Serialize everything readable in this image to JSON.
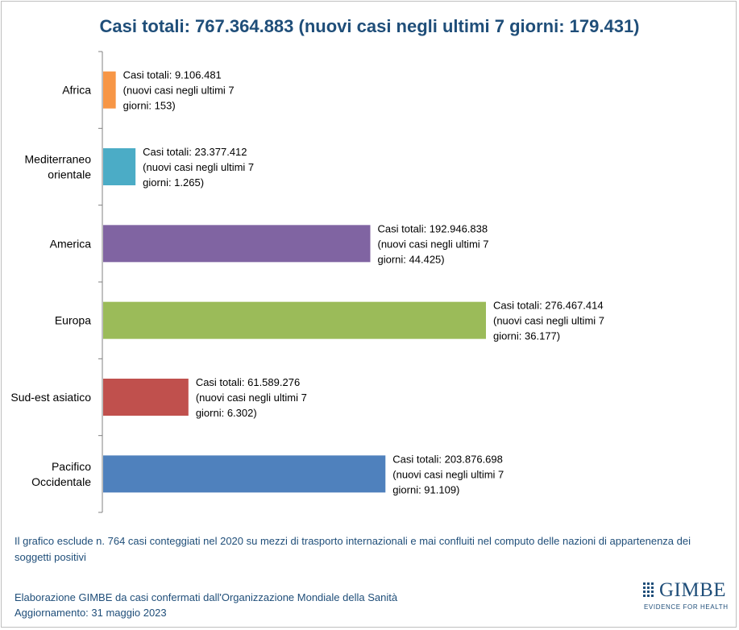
{
  "title": "Casi totali: 767.364.883 (nuovi casi negli ultimi 7 giorni: 179.431)",
  "chart_data": {
    "type": "bar",
    "orientation": "horizontal",
    "grid": false,
    "xlim": [
      0,
      276467414
    ],
    "categories": [
      [
        "Africa"
      ],
      [
        "Mediterraneo",
        "orientale"
      ],
      [
        "America"
      ],
      [
        "Europa"
      ],
      [
        "Sud-est asiatico"
      ],
      [
        "Pacifico",
        "Occidentale"
      ]
    ],
    "colors": [
      "#f79646",
      "#4bacc6",
      "#8064a2",
      "#9bbb59",
      "#c0504d",
      "#4f81bd"
    ],
    "series": [
      {
        "values": [
          9106481,
          23377412,
          192946838,
          276467414,
          61589276,
          203876698
        ],
        "new_cases_7d": [
          153,
          1265,
          44425,
          36177,
          6302,
          91109
        ]
      }
    ],
    "data_labels": [
      [
        "Casi totali: 9.106.481",
        "(nuovi casi negli ultimi 7",
        "giorni: 153)"
      ],
      [
        "Casi totali: 23.377.412",
        "(nuovi casi negli ultimi 7",
        "giorni: 1.265)"
      ],
      [
        "Casi totali: 192.946.838",
        "(nuovi casi negli ultimi 7",
        "giorni: 44.425)"
      ],
      [
        "Casi totali: 276.467.414",
        "(nuovi casi negli ultimi 7",
        "giorni: 36.177)"
      ],
      [
        "Casi totali: 61.589.276",
        "(nuovi casi negli ultimi 7",
        "giorni: 6.302)"
      ],
      [
        "Casi totali: 203.876.698",
        "(nuovi casi negli ultimi 7",
        "giorni: 91.109)"
      ]
    ]
  },
  "note": "Il grafico esclude n. 764 casi conteggiati nel 2020 su mezzi di trasporto internazionali  e mai confluiti nel computo delle nazioni di appartenenza dei soggetti positivi",
  "source_line1": "Elaborazione GIMBE da casi confermati dall'Organizzazione Mondiale della Sanità",
  "source_line2": "Aggiornamento: 31 maggio 2023",
  "logo": {
    "name": "GIMBE",
    "tagline": "EVIDENCE FOR HEALTH"
  },
  "colors": {
    "title": "#1f4e79",
    "text": "#1f4e79",
    "axis": "#808080"
  }
}
